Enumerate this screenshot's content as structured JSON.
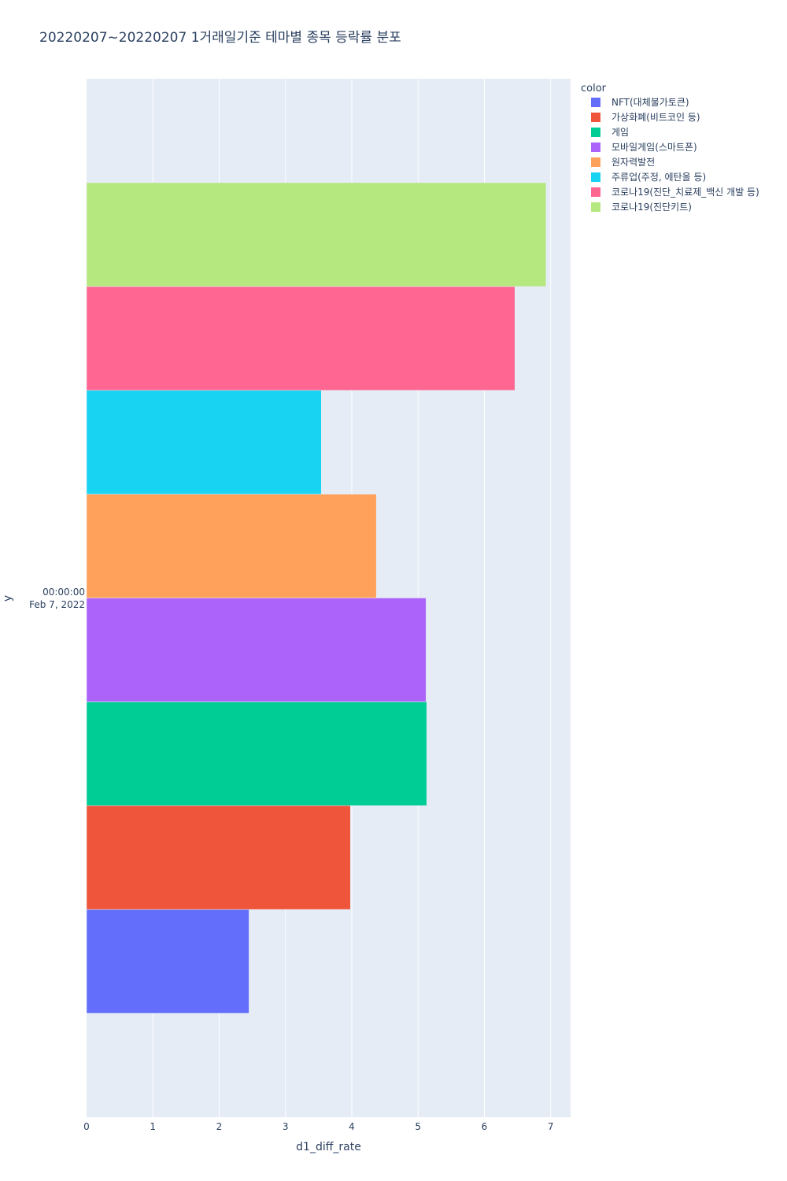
{
  "chart_data": {
    "type": "bar",
    "orientation": "horizontal",
    "title": "20220207~20220207 1거래일기준 테마별 종목 등락률 분포",
    "xlabel": "d1_diff_rate",
    "ylabel": "y",
    "xlim": [
      0,
      7.3
    ],
    "x_ticks": [
      "0",
      "1",
      "2",
      "3",
      "4",
      "5",
      "6",
      "7"
    ],
    "y_tick_label": [
      "00:00:00",
      "Feb 7, 2022"
    ],
    "grid": true,
    "barmode": "group",
    "legend_title": "color",
    "legend_position": "top-right",
    "series": [
      {
        "name": "NFT(대체불가토큰)",
        "value": 2.45,
        "color": "#636efa"
      },
      {
        "name": "가상화폐(비트코인 등)",
        "value": 3.98,
        "color": "#EF553B"
      },
      {
        "name": "게임",
        "value": 5.13,
        "color": "#00cc96"
      },
      {
        "name": "모바일게임(스마트폰)",
        "value": 5.12,
        "color": "#ab63fa"
      },
      {
        "name": "원자력발전",
        "value": 4.37,
        "color": "#FFA15A"
      },
      {
        "name": "주류업(주정, 에탄올 등)",
        "value": 3.54,
        "color": "#19d3f3"
      },
      {
        "name": "코로나19(진단_치료제_백신 개발 등)",
        "value": 6.46,
        "color": "#FF6692"
      },
      {
        "name": "코로나19(진단키트)",
        "value": 6.93,
        "color": "#B6E880"
      }
    ]
  }
}
